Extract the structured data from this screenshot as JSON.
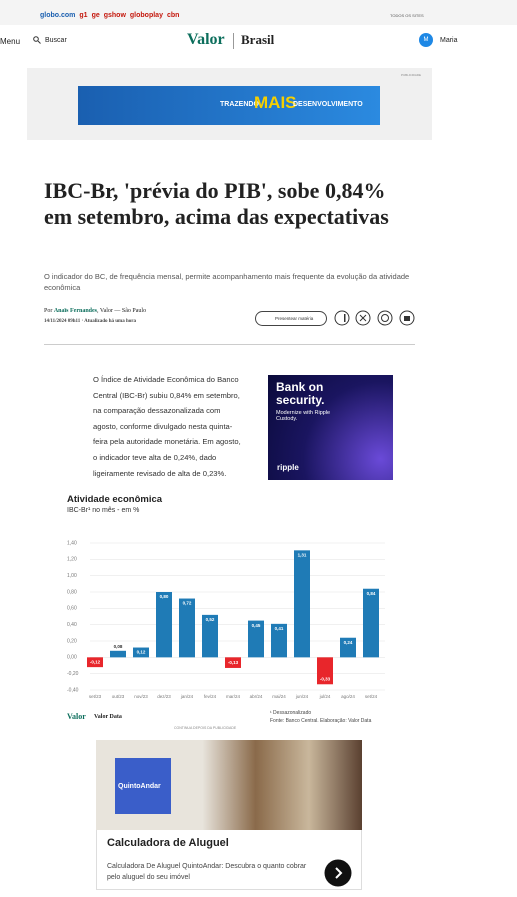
{
  "top_bar": {
    "links": [
      "globo.com",
      "g1",
      "ge",
      "gshow",
      "globoplay",
      "cbn"
    ],
    "right": "TODOS OS SITES"
  },
  "header": {
    "menu": "Menu",
    "search": "Buscar",
    "logo": "Valor",
    "section": "Brasil",
    "avatar": "M",
    "user": "Maria"
  },
  "ad_top": {
    "label": "PUBLICIDADE",
    "banner_left": "TRAZENDO",
    "banner_mid": "MAIS",
    "banner_right": "DESENVOLVIMENTO"
  },
  "article": {
    "title": "IBC-Br, 'prévia do PIB', sobe 0,84% em setembro, acima das expectativas",
    "subtitle": "O indicador do BC, de frequência mensal, permite acompanhamento mais frequente da evolução da atividade econômica",
    "byline_prefix": "Por",
    "author": "Anaïs Fernandes",
    "byline_rest": ", Valor — São Paulo",
    "date": "14/11/2024 09h11 · Atualizado há uma hora",
    "gift_button": "Presentear matéria",
    "body": "O Índice de Atividade Econômica do Banco Central (IBC-Br) subiu 0,84% em setembro, na comparação dessazonalizada com agosto, conforme divulgado nesta quinta-feira pela autoridade monetária. Em agosto, o indicador teve alta de 0,24%, dado ligeiramente revisado de alta de 0,23%."
  },
  "ad_side": {
    "headline": "Bank on security.",
    "text": "Modernize with Ripple Custody.",
    "brand": "ripple"
  },
  "chart": {
    "type": "bar",
    "title": "Atividade econômica",
    "subtitle": "IBC-Br¹ no mês - em %",
    "categories": [
      "set/23",
      "out/23",
      "nov/23",
      "dez/23",
      "jan/24",
      "fev/24",
      "mar/24",
      "abr/24",
      "mai/24",
      "jun/24",
      "jul/24",
      "ago/24",
      "set/24"
    ],
    "values": [
      -0.12,
      0.08,
      0.12,
      0.8,
      0.72,
      0.52,
      -0.13,
      0.45,
      0.41,
      1.31,
      -0.33,
      0.24,
      0.84
    ],
    "value_labels": [
      "-0,12",
      "0,08",
      "0,12",
      "0,80",
      "0,72",
      "0,52",
      "-0,13",
      "0,45",
      "0,41",
      "1,31",
      "-0,33",
      "0,24",
      "0,84"
    ],
    "ylim": [
      -0.4,
      1.4
    ],
    "yticks": [
      {
        "value": -0.4,
        "label": "-0,40"
      },
      {
        "value": -0.2,
        "label": "-0,20"
      },
      {
        "value": 0,
        "label": "0,00"
      },
      {
        "value": 0.2,
        "label": "0,20"
      },
      {
        "value": 0.4,
        "label": "0,40"
      },
      {
        "value": 0.6,
        "label": "0,60"
      },
      {
        "value": 0.8,
        "label": "0,80"
      },
      {
        "value": 1.0,
        "label": "1,00"
      },
      {
        "value": 1.2,
        "label": "1,20"
      },
      {
        "value": 1.4,
        "label": "1,40"
      }
    ],
    "grid": true,
    "positive_color": "#1f7bb6",
    "negative_color": "#e8262b",
    "note": "¹ Dessazonalizado",
    "source": "Fonte: Banco Central. Elaboração: Valor Data",
    "logo": "Valor",
    "logo_sub": "Valor Data"
  },
  "continue_label": "CONTINUA DEPOIS DA PUBLICIDADE",
  "ad_bottom": {
    "brand": "QuintoAndar",
    "title": "Calculadora de Aluguel",
    "text": "Calculadora De Aluguel QuintoAndar: Descubra o quanto cobrar pelo aluguel do seu imóvel"
  }
}
